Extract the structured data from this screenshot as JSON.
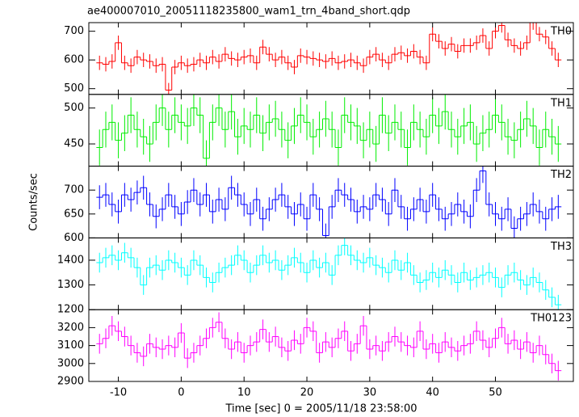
{
  "chart_data": {
    "type": "line",
    "title": "ae400007010_20051118235800_wam1_trn_4band_short.qdp",
    "xlabel": "Time [sec] 0 = 2005/11/18 23:58:00",
    "ylabel": "Counts/sec",
    "xlim": [
      -14.7,
      62.4
    ],
    "xticks": [
      -10,
      0,
      10,
      20,
      30,
      40,
      50
    ],
    "x": [
      -13,
      -12,
      -11,
      -10,
      -9,
      -8,
      -7,
      -6,
      -5,
      -4,
      -3,
      -2,
      -1,
      0,
      1,
      2,
      3,
      4,
      5,
      6,
      7,
      8,
      9,
      10,
      11,
      12,
      13,
      14,
      15,
      16,
      17,
      18,
      19,
      20,
      21,
      22,
      23,
      24,
      25,
      26,
      27,
      28,
      29,
      30,
      31,
      32,
      33,
      34,
      35,
      36,
      37,
      38,
      39,
      40,
      41,
      42,
      43,
      44,
      45,
      46,
      47,
      48,
      49,
      50,
      51,
      52,
      53,
      54,
      55,
      56,
      57,
      58,
      59,
      60
    ],
    "series": [
      {
        "name": "TH0",
        "color": "#ff0000",
        "ylim": [
          480,
          730
        ],
        "yticks": [
          500,
          600,
          700
        ],
        "error": 25,
        "values": [
          590,
          585,
          595,
          660,
          590,
          580,
          610,
          600,
          595,
          580,
          585,
          495,
          575,
          590,
          580,
          585,
          600,
          590,
          610,
          595,
          620,
          605,
          600,
          610,
          615,
          590,
          645,
          620,
          600,
          610,
          590,
          575,
          615,
          610,
          605,
          600,
          595,
          605,
          590,
          595,
          600,
          590,
          580,
          610,
          620,
          600,
          590,
          620,
          625,
          615,
          630,
          610,
          590,
          690,
          665,
          640,
          655,
          630,
          650,
          650,
          660,
          685,
          640,
          700,
          720,
          670,
          650,
          640,
          660,
          730,
          690,
          680,
          640,
          600
        ]
      },
      {
        "name": "TH1",
        "color": "#00ee00",
        "ylim": [
          419,
          519
        ],
        "yticks": [
          450,
          500
        ],
        "error": 25,
        "values": [
          445,
          470,
          480,
          455,
          465,
          490,
          470,
          460,
          450,
          480,
          500,
          470,
          490,
          480,
          475,
          500,
          490,
          430,
          480,
          500,
          470,
          495,
          460,
          475,
          470,
          490,
          465,
          480,
          485,
          470,
          455,
          475,
          490,
          480,
          460,
          470,
          485,
          470,
          445,
          490,
          480,
          475,
          455,
          470,
          450,
          490,
          465,
          480,
          470,
          445,
          480,
          470,
          460,
          490,
          475,
          495,
          470,
          460,
          475,
          480,
          450,
          465,
          470,
          490,
          480,
          460,
          455,
          470,
          485,
          475,
          445,
          470,
          460,
          450
        ]
      },
      {
        "name": "TH2",
        "color": "#0000ff",
        "ylim": [
          600,
          750
        ],
        "yticks": [
          600,
          650,
          700
        ],
        "error": 25,
        "values": [
          685,
          690,
          670,
          655,
          690,
          680,
          695,
          705,
          670,
          645,
          660,
          690,
          665,
          650,
          675,
          700,
          670,
          690,
          655,
          680,
          660,
          705,
          690,
          670,
          650,
          680,
          640,
          660,
          680,
          690,
          665,
          650,
          670,
          640,
          690,
          660,
          605,
          665,
          700,
          690,
          680,
          655,
          665,
          660,
          690,
          680,
          650,
          700,
          665,
          640,
          660,
          680,
          655,
          690,
          660,
          640,
          650,
          670,
          655,
          645,
          700,
          740,
          670,
          650,
          640,
          660,
          620,
          640,
          650,
          670,
          655,
          640,
          660,
          665
        ]
      },
      {
        "name": "TH3",
        "color": "#00ffff",
        "ylim": [
          1200,
          1490
        ],
        "yticks": [
          1200,
          1300,
          1400
        ],
        "error": 40,
        "values": [
          1390,
          1410,
          1420,
          1400,
          1430,
          1410,
          1370,
          1300,
          1370,
          1380,
          1360,
          1400,
          1390,
          1370,
          1340,
          1400,
          1380,
          1330,
          1310,
          1350,
          1370,
          1380,
          1420,
          1400,
          1350,
          1380,
          1420,
          1390,
          1400,
          1360,
          1380,
          1410,
          1390,
          1350,
          1400,
          1370,
          1390,
          1340,
          1420,
          1460,
          1420,
          1400,
          1390,
          1410,
          1380,
          1370,
          1350,
          1400,
          1360,
          1390,
          1340,
          1310,
          1320,
          1350,
          1330,
          1360,
          1340,
          1310,
          1350,
          1320,
          1330,
          1340,
          1350,
          1330,
          1290,
          1340,
          1350,
          1320,
          1300,
          1330,
          1310,
          1280,
          1250,
          1220
        ]
      },
      {
        "name": "TH0123",
        "color": "#ff00ff",
        "ylim": [
          2900,
          3300
        ],
        "yticks": [
          2900,
          3000,
          3100,
          3200
        ],
        "error": 55,
        "values": [
          3110,
          3140,
          3210,
          3180,
          3150,
          3100,
          3060,
          3040,
          3110,
          3090,
          3080,
          3100,
          3090,
          3170,
          3030,
          3060,
          3100,
          3140,
          3200,
          3230,
          3140,
          3080,
          3120,
          3060,
          3100,
          3120,
          3190,
          3120,
          3150,
          3090,
          3070,
          3130,
          3110,
          3200,
          3180,
          3060,
          3120,
          3090,
          3140,
          3180,
          3070,
          3110,
          3210,
          3080,
          3100,
          3070,
          3120,
          3150,
          3120,
          3100,
          3090,
          3180,
          3080,
          3110,
          3060,
          3120,
          3090,
          3070,
          3100,
          3110,
          3180,
          3130,
          3090,
          3140,
          3200,
          3110,
          3130,
          3080,
          3120,
          3060,
          3100,
          3050,
          3000,
          2960
        ]
      }
    ]
  }
}
